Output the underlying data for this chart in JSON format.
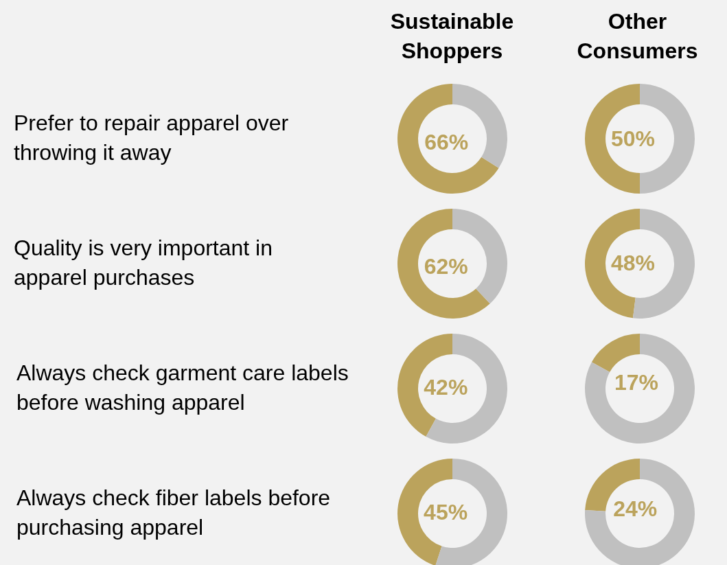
{
  "chart_data": [
    {
      "type": "other",
      "annotations": [
        "Sustainable Shoppers",
        "Other Consumers",
        "Prefer to repair apparel over throwing it away",
        "Quality is very important in apparel purchases",
        "Always check garment care labels before washing apparel",
        "Always check fiber labels before purchasing apparel"
      ]
    },
    {
      "type": "donut",
      "categories": [
        null,
        null
      ],
      "values": [
        66,
        34
      ],
      "colors": [
        "#bba35c",
        "#c0c0c0"
      ],
      "value_labels": [
        "66%",
        null
      ]
    },
    {
      "type": "donut",
      "categories": [
        null,
        null
      ],
      "values": [
        50,
        50
      ],
      "colors": [
        "#bba35c",
        "#c0c0c0"
      ],
      "value_labels": [
        "50%",
        null
      ]
    },
    {
      "type": "donut",
      "categories": [
        null,
        null
      ],
      "values": [
        62,
        38
      ],
      "colors": [
        "#bba35c",
        "#c0c0c0"
      ],
      "value_labels": [
        "62%",
        null
      ]
    },
    {
      "type": "donut",
      "categories": [
        null,
        null
      ],
      "values": [
        48,
        52
      ],
      "colors": [
        "#bba35c",
        "#c0c0c0"
      ],
      "value_labels": [
        "48%",
        null
      ]
    },
    {
      "type": "donut",
      "categories": [
        null,
        null
      ],
      "values": [
        42,
        58
      ],
      "colors": [
        "#bba35c",
        "#c0c0c0"
      ],
      "value_labels": [
        "42%",
        null
      ]
    },
    {
      "type": "donut",
      "categories": [
        null,
        null
      ],
      "values": [
        17,
        83
      ],
      "colors": [
        "#bba35c",
        "#c0c0c0"
      ],
      "value_labels": [
        "17%",
        null
      ]
    },
    {
      "type": "donut",
      "categories": [
        null,
        null
      ],
      "values": [
        45,
        55
      ],
      "colors": [
        "#bba35c",
        "#c0c0c0"
      ],
      "value_labels": [
        "45%",
        null
      ]
    },
    {
      "type": "donut",
      "categories": [
        null,
        null
      ],
      "values": [
        24,
        76
      ],
      "colors": [
        "#bba35c",
        "#c0c0c0"
      ],
      "value_labels": [
        "24%",
        null
      ]
    }
  ]
}
